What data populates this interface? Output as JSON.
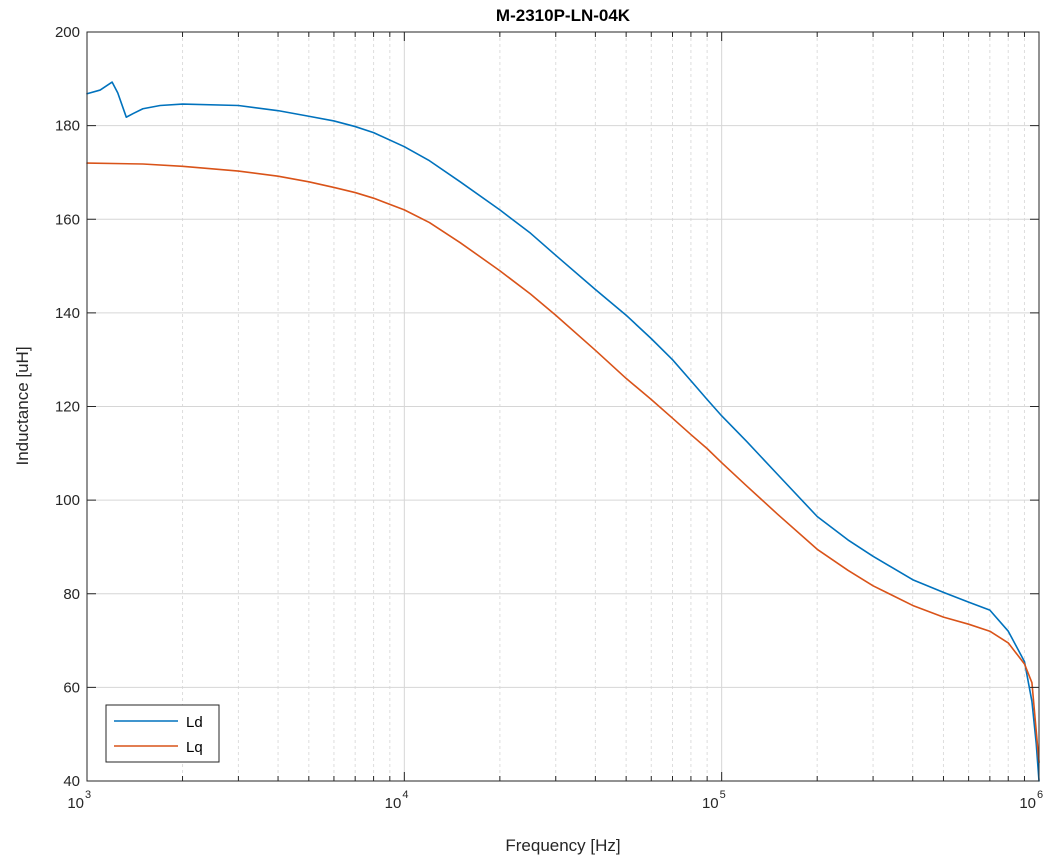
{
  "chart_data": {
    "type": "line",
    "title": "M-2310P-LN-04K",
    "xlabel": "Frequency [Hz]",
    "ylabel": "Inductance [uH]",
    "xscale": "log",
    "xlim": [
      1000,
      1000000
    ],
    "ylim": [
      40,
      200
    ],
    "grid": "on",
    "minor_grid": "on",
    "legend_position": "bottom-left",
    "x_ticks": [
      {
        "base": "10",
        "exp": "3",
        "value": 1000
      },
      {
        "base": "10",
        "exp": "4",
        "value": 10000
      },
      {
        "base": "10",
        "exp": "5",
        "value": 100000
      },
      {
        "base": "10",
        "exp": "6",
        "value": 1000000
      }
    ],
    "y_ticks": [
      "40",
      "60",
      "80",
      "100",
      "120",
      "140",
      "160",
      "180",
      "200"
    ],
    "series": [
      {
        "name": "Ld",
        "color": "#0072BD",
        "points": [
          [
            1000,
            186.8
          ],
          [
            1100,
            187.6
          ],
          [
            1200,
            189.3
          ],
          [
            1250,
            187.0
          ],
          [
            1330,
            181.8
          ],
          [
            1400,
            182.6
          ],
          [
            1500,
            183.6
          ],
          [
            1700,
            184.3
          ],
          [
            2000,
            184.6
          ],
          [
            3000,
            184.3
          ],
          [
            4000,
            183.2
          ],
          [
            5000,
            182.0
          ],
          [
            6000,
            181.0
          ],
          [
            7000,
            179.8
          ],
          [
            8000,
            178.5
          ],
          [
            10000,
            175.5
          ],
          [
            12000,
            172.5
          ],
          [
            15000,
            168.0
          ],
          [
            20000,
            162.0
          ],
          [
            25000,
            157.0
          ],
          [
            30000,
            152.3
          ],
          [
            40000,
            145.0
          ],
          [
            50000,
            139.5
          ],
          [
            60000,
            134.5
          ],
          [
            70000,
            130.0
          ],
          [
            80000,
            125.5
          ],
          [
            90000,
            121.5
          ],
          [
            100000,
            118.0
          ],
          [
            120000,
            112.5
          ],
          [
            150000,
            105.5
          ],
          [
            200000,
            96.5
          ],
          [
            250000,
            91.5
          ],
          [
            300000,
            88.0
          ],
          [
            400000,
            83.0
          ],
          [
            500000,
            80.3
          ],
          [
            600000,
            78.2
          ],
          [
            700000,
            76.5
          ],
          [
            800000,
            72.0
          ],
          [
            900000,
            65.5
          ],
          [
            950000,
            57.0
          ],
          [
            980000,
            48.0
          ],
          [
            1000000,
            40.0
          ]
        ]
      },
      {
        "name": "Lq",
        "color": "#D95319",
        "points": [
          [
            1000,
            172.0
          ],
          [
            1500,
            171.8
          ],
          [
            2000,
            171.3
          ],
          [
            3000,
            170.3
          ],
          [
            4000,
            169.2
          ],
          [
            5000,
            168.0
          ],
          [
            6000,
            166.8
          ],
          [
            7000,
            165.7
          ],
          [
            8000,
            164.5
          ],
          [
            10000,
            162.0
          ],
          [
            12000,
            159.3
          ],
          [
            15000,
            155.0
          ],
          [
            20000,
            149.0
          ],
          [
            25000,
            144.0
          ],
          [
            30000,
            139.5
          ],
          [
            40000,
            132.0
          ],
          [
            50000,
            126.0
          ],
          [
            60000,
            121.5
          ],
          [
            70000,
            117.5
          ],
          [
            80000,
            114.0
          ],
          [
            90000,
            111.0
          ],
          [
            100000,
            108.0
          ],
          [
            120000,
            103.0
          ],
          [
            150000,
            97.0
          ],
          [
            200000,
            89.5
          ],
          [
            250000,
            85.0
          ],
          [
            300000,
            81.7
          ],
          [
            400000,
            77.5
          ],
          [
            500000,
            75.0
          ],
          [
            600000,
            73.5
          ],
          [
            700000,
            72.0
          ],
          [
            800000,
            69.5
          ],
          [
            900000,
            65.0
          ],
          [
            950000,
            61.0
          ],
          [
            1000000,
            44.0
          ]
        ]
      }
    ]
  }
}
